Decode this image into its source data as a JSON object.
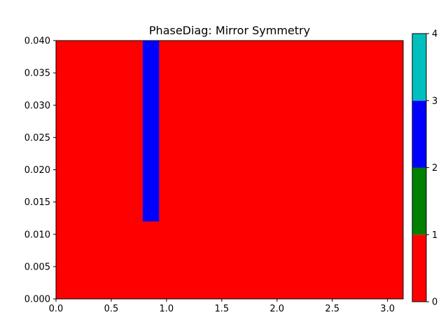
{
  "chart_data": {
    "type": "heatmap",
    "title": "PhaseDiag: Mirror Symmetry",
    "xlabel": "",
    "ylabel": "",
    "xlim": [
      0,
      3.14159
    ],
    "ylim": [
      0,
      0.04
    ],
    "x_ticks": [
      0,
      0.5,
      1,
      1.5,
      2,
      2.5,
      3
    ],
    "x_tick_labels": [
      "0.0",
      "0.5",
      "1.0",
      "1.5",
      "2.0",
      "2.5",
      "3.0"
    ],
    "y_ticks": [
      0,
      0.005,
      0.01,
      0.015,
      0.02,
      0.025,
      0.03,
      0.035,
      0.04
    ],
    "y_tick_labels": [
      "0.000",
      "0.005",
      "0.010",
      "0.015",
      "0.020",
      "0.025",
      "0.030",
      "0.035",
      "0.040"
    ],
    "grid": false,
    "background_phase": 0,
    "regions": [
      {
        "x": [
          0.785,
          0.933
        ],
        "y": [
          0.012,
          0.04
        ],
        "phase": 2
      }
    ],
    "colorbar": {
      "levels": [
        0,
        1,
        2,
        3,
        4
      ],
      "tick_labels": [
        "0",
        "1",
        "2",
        "3",
        "4"
      ],
      "colors": [
        "#ff0000",
        "#008000",
        "#0000ff",
        "#00bfbf"
      ]
    }
  }
}
